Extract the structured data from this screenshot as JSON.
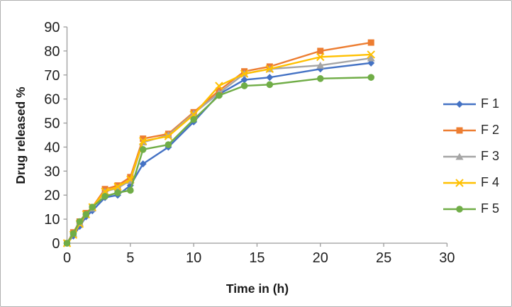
{
  "chart_data": {
    "type": "line",
    "title": "",
    "xlabel": "Time in (h)",
    "ylabel": "Drug released %",
    "xlim": [
      0,
      30
    ],
    "ylim": [
      0,
      90
    ],
    "x_ticks": [
      0,
      5,
      10,
      15,
      20,
      25,
      30
    ],
    "y_ticks": [
      0,
      10,
      20,
      30,
      40,
      50,
      60,
      70,
      80,
      90
    ],
    "grid": false,
    "legend_position": "right",
    "axis_color": "#9b9b9b",
    "text_color": "#1f1f1f",
    "x": [
      0,
      0.5,
      1,
      1.5,
      2,
      3,
      4,
      5,
      6,
      8,
      10,
      12,
      14,
      16,
      20,
      24
    ],
    "series": [
      {
        "name": "F 1",
        "color": "#4472C4",
        "marker": "diamond",
        "values": [
          0,
          3,
          7,
          11,
          13.5,
          19,
          20,
          24,
          33,
          40,
          50.5,
          62,
          68,
          69,
          72.5,
          75
        ]
      },
      {
        "name": "F 2",
        "color": "#ED7D31",
        "marker": "square",
        "values": [
          0,
          4.5,
          9,
          12.5,
          15,
          22.5,
          24,
          27.5,
          43.5,
          45.5,
          54.5,
          63.5,
          71.5,
          73.5,
          80,
          83.5
        ]
      },
      {
        "name": "F 3",
        "color": "#A5A5A5",
        "marker": "triangle",
        "values": [
          0,
          4,
          8.5,
          12,
          14.5,
          21.5,
          23,
          26,
          42,
          45,
          54,
          62.5,
          70.5,
          72.5,
          74,
          77
        ]
      },
      {
        "name": "F 4",
        "color": "#FFC000",
        "marker": "x",
        "values": [
          0,
          3.5,
          8,
          12,
          15,
          21.5,
          23.5,
          26.5,
          42.5,
          44.5,
          53.5,
          65.5,
          70.5,
          72.5,
          77.5,
          78.5
        ]
      },
      {
        "name": "F 5",
        "color": "#70AD47",
        "marker": "circle",
        "values": [
          0,
          4,
          9,
          12,
          15,
          19.5,
          21,
          22,
          39,
          41,
          51.5,
          61.5,
          65.5,
          66,
          68.5,
          69
        ]
      }
    ]
  }
}
